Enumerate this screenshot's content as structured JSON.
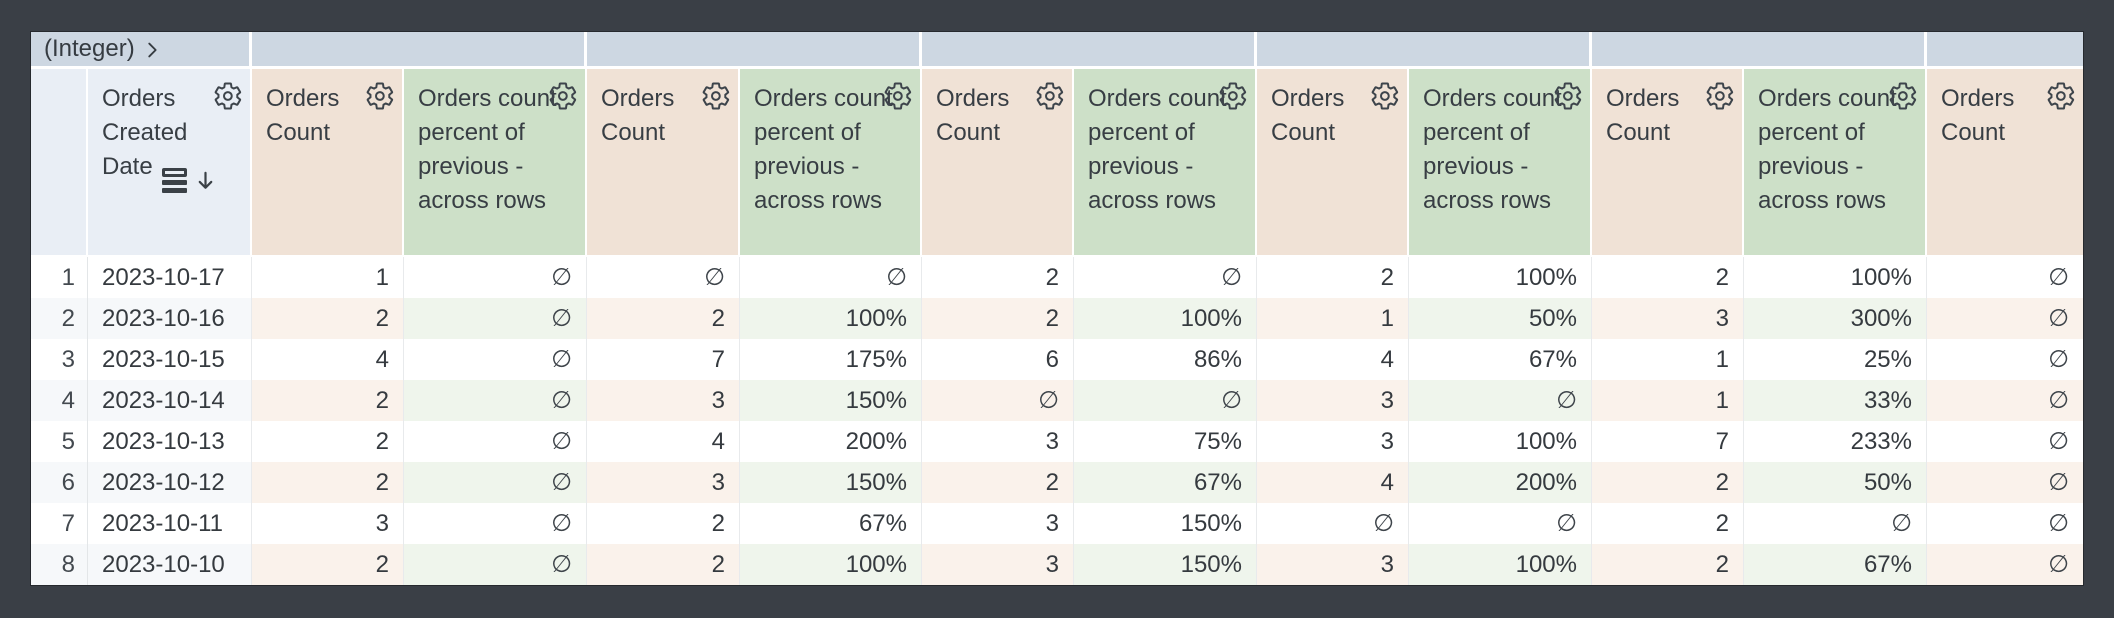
{
  "window": {
    "background_color": "#3a3f46",
    "table_border_color": "#26292e"
  },
  "colors": {
    "pivot_row_bg": "#cdd7e2",
    "dimension_header_bg": "#e9eef5",
    "measure_header_bg": "#f0e2d6",
    "calculation_header_bg": "#cde0c8",
    "even_row_dimension_bg": "#f6f8fa",
    "even_row_measure_bg": "#faf2eb",
    "even_row_calculation_bg": "#eff5ec",
    "text_color": "#353a3f"
  },
  "icons": {
    "gear": "settings-gear-icon",
    "chevron": "chevron-right-icon",
    "sort": "sorted-rows-icon",
    "sort_arrow": "arrow-down-icon"
  },
  "pivot": {
    "field_label": "(Integer)",
    "sections": [
      "",
      "",
      "",
      "",
      "",
      ""
    ]
  },
  "null_display": "∅",
  "columns": [
    {
      "type": "index",
      "label": ""
    },
    {
      "type": "dimension",
      "label": "Orders Created Date",
      "sorted": "desc"
    },
    {
      "type": "measure",
      "label": "Orders Count"
    },
    {
      "type": "calculation",
      "label": "Orders count percent of previous - across rows"
    },
    {
      "type": "measure",
      "label": "Orders Count"
    },
    {
      "type": "calculation",
      "label": "Orders count percent of previous - across rows"
    },
    {
      "type": "measure",
      "label": "Orders Count"
    },
    {
      "type": "calculation",
      "label": "Orders count percent of previous - across rows"
    },
    {
      "type": "measure",
      "label": "Orders Count"
    },
    {
      "type": "calculation",
      "label": "Orders count percent of previous - across rows"
    },
    {
      "type": "measure",
      "label": "Orders Count"
    },
    {
      "type": "calculation",
      "label": "Orders count percent of previous - across rows"
    },
    {
      "type": "measure",
      "label": "Orders Count"
    }
  ],
  "rows": [
    {
      "index": "1",
      "values": [
        "2023-10-17",
        "1",
        "∅",
        "∅",
        "∅",
        "2",
        "∅",
        "2",
        "100%",
        "2",
        "100%",
        "∅"
      ]
    },
    {
      "index": "2",
      "values": [
        "2023-10-16",
        "2",
        "∅",
        "2",
        "100%",
        "2",
        "100%",
        "1",
        "50%",
        "3",
        "300%",
        "∅"
      ]
    },
    {
      "index": "3",
      "values": [
        "2023-10-15",
        "4",
        "∅",
        "7",
        "175%",
        "6",
        "86%",
        "4",
        "67%",
        "1",
        "25%",
        "∅"
      ]
    },
    {
      "index": "4",
      "values": [
        "2023-10-14",
        "2",
        "∅",
        "3",
        "150%",
        "∅",
        "∅",
        "3",
        "∅",
        "1",
        "33%",
        "∅"
      ]
    },
    {
      "index": "5",
      "values": [
        "2023-10-13",
        "2",
        "∅",
        "4",
        "200%",
        "3",
        "75%",
        "3",
        "100%",
        "7",
        "233%",
        "∅"
      ]
    },
    {
      "index": "6",
      "values": [
        "2023-10-12",
        "2",
        "∅",
        "3",
        "150%",
        "2",
        "67%",
        "4",
        "200%",
        "2",
        "50%",
        "∅"
      ]
    },
    {
      "index": "7",
      "values": [
        "2023-10-11",
        "3",
        "∅",
        "2",
        "67%",
        "3",
        "150%",
        "∅",
        "∅",
        "2",
        "∅",
        "∅"
      ]
    },
    {
      "index": "8",
      "values": [
        "2023-10-10",
        "2",
        "∅",
        "2",
        "100%",
        "3",
        "150%",
        "3",
        "100%",
        "2",
        "67%",
        "∅"
      ]
    }
  ]
}
